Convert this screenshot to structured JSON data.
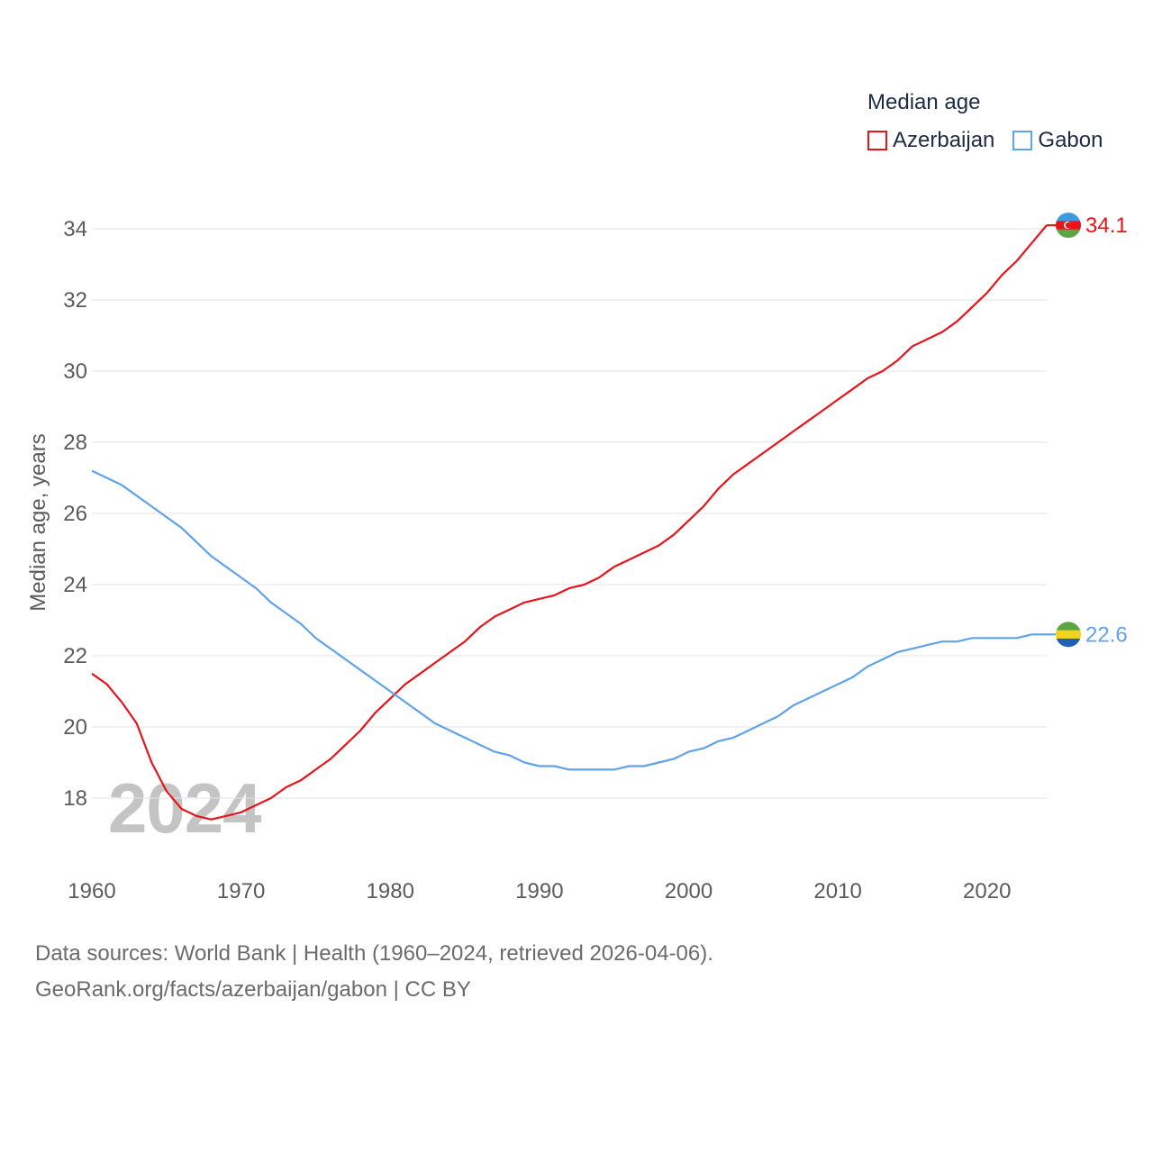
{
  "legend": {
    "title": "Median age",
    "items": [
      {
        "label": "Azerbaijan",
        "color": "#e8141b"
      },
      {
        "label": "Gabon",
        "color": "#5fa3e8"
      }
    ]
  },
  "watermark_year": "2024",
  "footer": {
    "line1": "Data sources: World Bank | Health (1960–2024, retrieved 2026-04-06).",
    "line2": "GeoRank.org/facts/azerbaijan/gabon | CC BY"
  },
  "chart_data": {
    "type": "line",
    "title": "Median age",
    "xlabel": "",
    "ylabel": "Median age, years",
    "xlim": [
      1960,
      2024
    ],
    "ylim": [
      17,
      35
    ],
    "xticks": [
      1960,
      1970,
      1980,
      1990,
      2000,
      2010,
      2020
    ],
    "yticks": [
      18,
      20,
      22,
      24,
      26,
      28,
      30,
      32,
      34
    ],
    "grid": true,
    "x": [
      1960,
      1961,
      1962,
      1963,
      1964,
      1965,
      1966,
      1967,
      1968,
      1969,
      1970,
      1971,
      1972,
      1973,
      1974,
      1975,
      1976,
      1977,
      1978,
      1979,
      1980,
      1981,
      1982,
      1983,
      1984,
      1985,
      1986,
      1987,
      1988,
      1989,
      1990,
      1991,
      1992,
      1993,
      1994,
      1995,
      1996,
      1997,
      1998,
      1999,
      2000,
      2001,
      2002,
      2003,
      2004,
      2005,
      2006,
      2007,
      2008,
      2009,
      2010,
      2011,
      2012,
      2013,
      2014,
      2015,
      2016,
      2017,
      2018,
      2019,
      2020,
      2021,
      2022,
      2023,
      2024
    ],
    "series": [
      {
        "name": "Azerbaijan",
        "color": "#e8141b",
        "end_label": "34.1",
        "values": [
          21.5,
          21.2,
          20.7,
          20.1,
          19.0,
          18.2,
          17.7,
          17.5,
          17.4,
          17.5,
          17.6,
          17.8,
          18.0,
          18.3,
          18.5,
          18.8,
          19.1,
          19.5,
          19.9,
          20.4,
          20.8,
          21.2,
          21.5,
          21.8,
          22.1,
          22.4,
          22.8,
          23.1,
          23.3,
          23.5,
          23.6,
          23.7,
          23.9,
          24.0,
          24.2,
          24.5,
          24.7,
          24.9,
          25.1,
          25.4,
          25.8,
          26.2,
          26.7,
          27.1,
          27.4,
          27.7,
          28.0,
          28.3,
          28.6,
          28.9,
          29.2,
          29.5,
          29.8,
          30.0,
          30.3,
          30.7,
          30.9,
          31.1,
          31.4,
          31.8,
          32.2,
          32.7,
          33.1,
          33.6,
          34.1
        ]
      },
      {
        "name": "Gabon",
        "color": "#5fa3e8",
        "end_label": "22.6",
        "values": [
          27.2,
          27.0,
          26.8,
          26.5,
          26.2,
          25.9,
          25.6,
          25.2,
          24.8,
          24.5,
          24.2,
          23.9,
          23.5,
          23.2,
          22.9,
          22.5,
          22.2,
          21.9,
          21.6,
          21.3,
          21.0,
          20.7,
          20.4,
          20.1,
          19.9,
          19.7,
          19.5,
          19.3,
          19.2,
          19.0,
          18.9,
          18.9,
          18.8,
          18.8,
          18.8,
          18.8,
          18.9,
          18.9,
          19.0,
          19.1,
          19.3,
          19.4,
          19.6,
          19.7,
          19.9,
          20.1,
          20.3,
          20.6,
          20.8,
          21.0,
          21.2,
          21.4,
          21.7,
          21.9,
          22.1,
          22.2,
          22.3,
          22.4,
          22.4,
          22.5,
          22.5,
          22.5,
          22.5,
          22.6,
          22.6
        ]
      }
    ]
  }
}
